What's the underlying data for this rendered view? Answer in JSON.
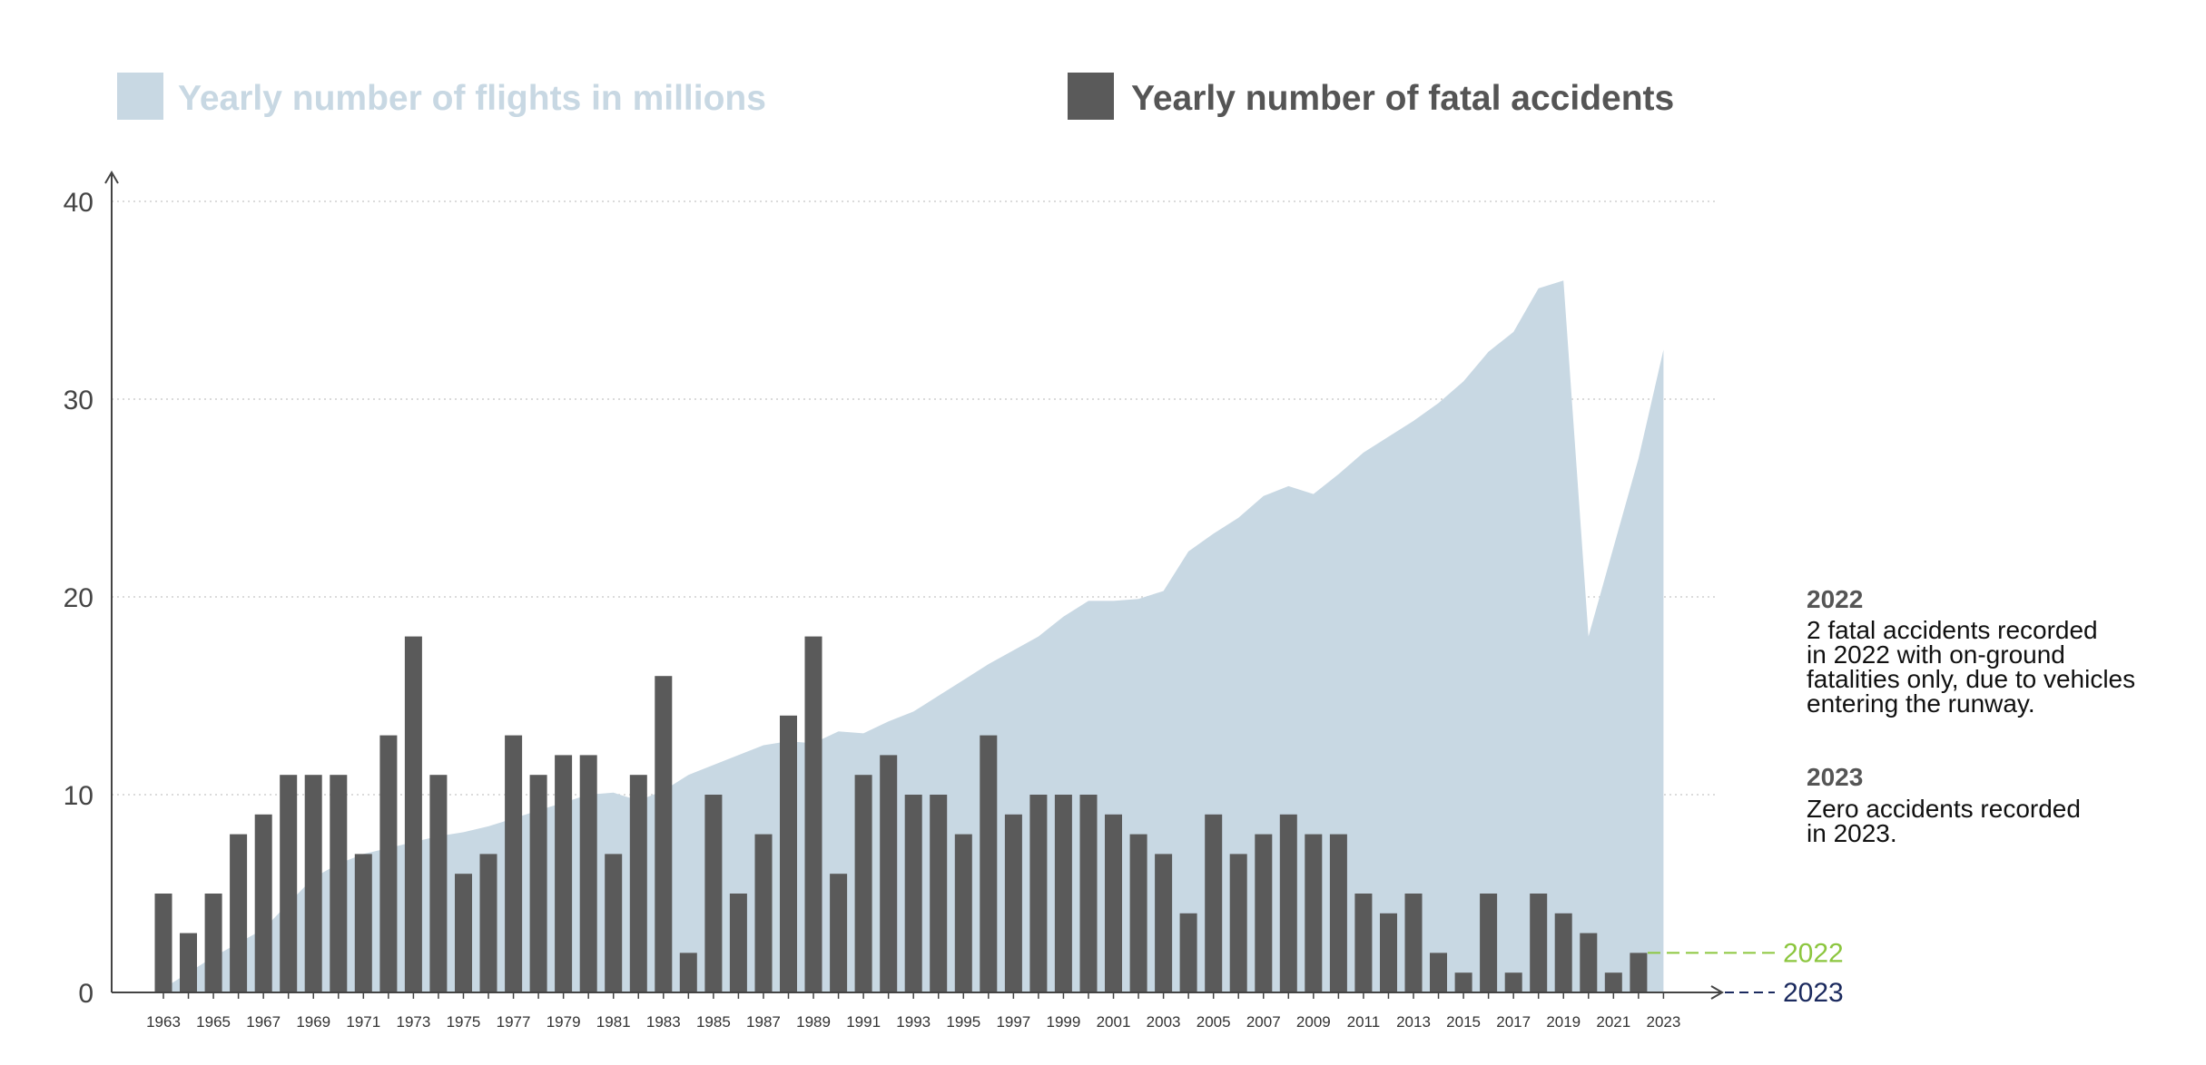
{
  "legend": {
    "flights_label": "Yearly number of flights in millions",
    "accidents_label": "Yearly number of fatal accidents"
  },
  "colors": {
    "flights": "#c8d8e3",
    "flights_text": "#c8d8e3",
    "accidents": "#5a5a5a",
    "accidents_text": "#555555",
    "axis": "#444444",
    "grid": "#cfcfcf",
    "marker_2022": "#8cc63f",
    "marker_2023": "#1b2a5e"
  },
  "annotations": [
    {
      "year": "2022",
      "lines": [
        "2 fatal accidents recorded",
        "in 2022 with on-ground",
        "fatalities only, due to vehicles",
        "entering the runway."
      ]
    },
    {
      "year": "2023",
      "lines": [
        "Zero accidents recorded",
        "in 2023."
      ]
    }
  ],
  "markers": [
    {
      "label": "2022",
      "value": 2
    },
    {
      "label": "2023",
      "value": 0
    }
  ],
  "chart_data": {
    "type": "bar",
    "title": "",
    "xlabel": "",
    "ylabel": "",
    "ylim": [
      0,
      40
    ],
    "yticks": [
      0,
      10,
      20,
      30,
      40
    ],
    "grid": true,
    "legend_position": "top",
    "x": [
      1963,
      1964,
      1965,
      1966,
      1967,
      1968,
      1969,
      1970,
      1971,
      1972,
      1973,
      1974,
      1975,
      1976,
      1977,
      1978,
      1979,
      1980,
      1981,
      1982,
      1983,
      1984,
      1985,
      1986,
      1987,
      1988,
      1989,
      1990,
      1991,
      1992,
      1993,
      1994,
      1995,
      1996,
      1997,
      1998,
      1999,
      2000,
      2001,
      2002,
      2003,
      2004,
      2005,
      2006,
      2007,
      2008,
      2009,
      2010,
      2011,
      2012,
      2013,
      2014,
      2015,
      2016,
      2017,
      2018,
      2019,
      2020,
      2021,
      2022,
      2023
    ],
    "x_tick_labels": [
      "1963",
      "1965",
      "1967",
      "1969",
      "1971",
      "1973",
      "1975",
      "1977",
      "1979",
      "1981",
      "1983",
      "1985",
      "1987",
      "1989",
      "1991",
      "1993",
      "1995",
      "1997",
      "1999",
      "2001",
      "2003",
      "2005",
      "2007",
      "2009",
      "2011",
      "2013",
      "2015",
      "2017",
      "2019",
      "2021",
      "2023"
    ],
    "series": [
      {
        "name": "Yearly number of flights in millions",
        "type": "area",
        "values": [
          0.2,
          1.0,
          1.8,
          2.5,
          3.2,
          4.5,
          5.8,
          6.5,
          7.0,
          7.3,
          7.6,
          7.9,
          8.1,
          8.4,
          8.8,
          9.2,
          9.6,
          10.0,
          10.1,
          9.7,
          10.2,
          11.0,
          11.5,
          12.0,
          12.5,
          12.7,
          12.6,
          13.2,
          13.1,
          13.7,
          14.2,
          15.0,
          15.8,
          16.6,
          17.3,
          18.0,
          19.0,
          19.8,
          19.8,
          19.9,
          20.3,
          22.3,
          23.2,
          24.0,
          25.1,
          25.6,
          25.2,
          26.2,
          27.3,
          28.1,
          28.9,
          29.8,
          30.9,
          32.4,
          33.4,
          35.6,
          36.0,
          18.0,
          22.5,
          27.0,
          32.5
        ]
      },
      {
        "name": "Yearly number of fatal accidents",
        "type": "bar",
        "values": [
          5,
          3,
          5,
          8,
          9,
          11,
          11,
          11,
          7,
          13,
          18,
          11,
          6,
          7,
          13,
          11,
          12,
          12,
          7,
          11,
          16,
          2,
          10,
          5,
          8,
          14,
          18,
          6,
          11,
          12,
          10,
          10,
          8,
          13,
          9,
          10,
          10,
          10,
          9,
          8,
          7,
          4,
          9,
          7,
          8,
          9,
          8,
          8,
          5,
          4,
          5,
          2,
          1,
          5,
          1,
          5,
          4,
          3,
          1,
          2,
          0
        ]
      }
    ]
  }
}
